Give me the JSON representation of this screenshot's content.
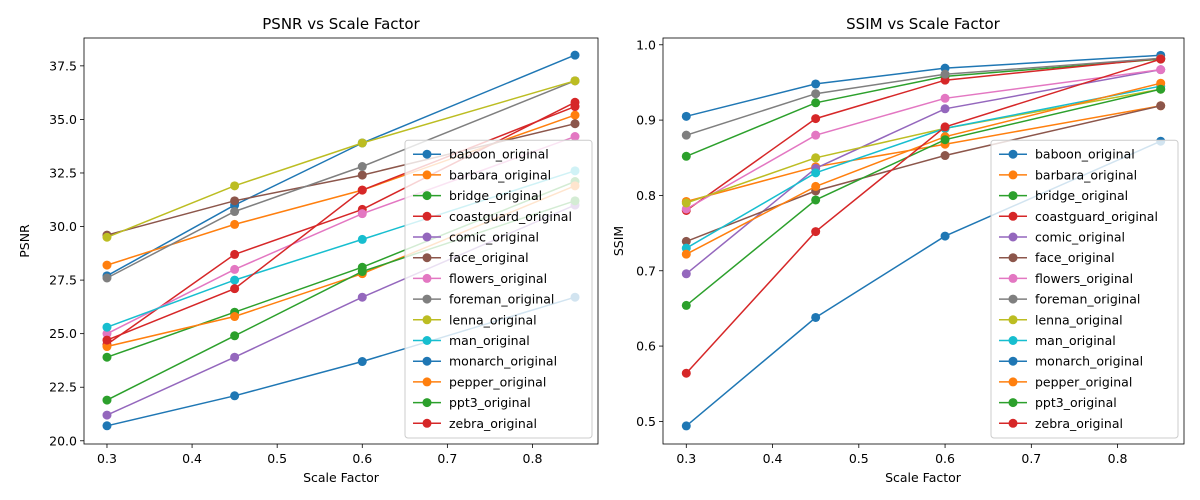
{
  "chart_data": [
    {
      "type": "line",
      "title": "PSNR vs Scale Factor",
      "xlabel": "Scale Factor",
      "ylabel": "PSNR",
      "xlim": [
        0.273,
        0.877
      ],
      "ylim": [
        19.85,
        38.8
      ],
      "xticks": [
        "0.3",
        "0.4",
        "0.5",
        "0.6",
        "0.7",
        "0.8"
      ],
      "yticks": [
        "20.0",
        "22.5",
        "25.0",
        "27.5",
        "30.0",
        "32.5",
        "35.0",
        "37.5"
      ],
      "x": [
        0.3,
        0.45,
        0.6,
        0.85
      ],
      "legend": "right",
      "series": [
        {
          "name": "baboon_original",
          "color": "#1f77b4",
          "values": [
            27.7,
            31.0,
            33.9,
            38.0
          ]
        },
        {
          "name": "barbara_original",
          "color": "#ff7f0e",
          "values": [
            28.2,
            30.1,
            31.7,
            35.2
          ]
        },
        {
          "name": "bridge_original",
          "color": "#2ca02c",
          "values": [
            23.9,
            26.0,
            28.1,
            32.1
          ]
        },
        {
          "name": "coastguard_original",
          "color": "#d62728",
          "values": [
            24.5,
            28.7,
            30.8,
            35.8
          ]
        },
        {
          "name": "comic_original",
          "color": "#9467bd",
          "values": [
            21.2,
            23.9,
            26.7,
            31.0
          ]
        },
        {
          "name": "face_original",
          "color": "#8c564b",
          "values": [
            29.6,
            31.2,
            32.4,
            34.8
          ]
        },
        {
          "name": "flowers_original",
          "color": "#e377c2",
          "values": [
            25.0,
            28.0,
            30.6,
            34.2
          ]
        },
        {
          "name": "foreman_original",
          "color": "#7f7f7f",
          "values": [
            27.6,
            30.7,
            32.8,
            36.8
          ]
        },
        {
          "name": "lenna_original",
          "color": "#bcbd22",
          "values": [
            29.5,
            31.9,
            33.9,
            36.8
          ]
        },
        {
          "name": "man_original",
          "color": "#17becf",
          "values": [
            25.3,
            27.5,
            29.4,
            32.6
          ]
        },
        {
          "name": "monarch_original",
          "color": "#1f77b4",
          "values": [
            20.7,
            22.1,
            23.7,
            26.7
          ]
        },
        {
          "name": "pepper_original",
          "color": "#ff7f0e",
          "values": [
            24.4,
            25.8,
            27.8,
            31.9
          ]
        },
        {
          "name": "ppt3_original",
          "color": "#2ca02c",
          "values": [
            21.9,
            24.9,
            27.9,
            31.2
          ]
        },
        {
          "name": "zebra_original",
          "color": "#d62728",
          "values": [
            24.7,
            27.1,
            31.7,
            35.6
          ]
        }
      ]
    },
    {
      "type": "line",
      "title": "SSIM vs Scale Factor",
      "xlabel": "Scale Factor",
      "ylabel": "SSIM",
      "xlim": [
        0.273,
        0.877
      ],
      "ylim": [
        0.47,
        1.009
      ],
      "xticks": [
        "0.3",
        "0.4",
        "0.5",
        "0.6",
        "0.7",
        "0.8"
      ],
      "yticks": [
        "0.5",
        "0.6",
        "0.7",
        "0.8",
        "0.9",
        "1.0"
      ],
      "x": [
        0.3,
        0.45,
        0.6,
        0.85
      ],
      "legend": "right",
      "series": [
        {
          "name": "baboon_original",
          "color": "#1f77b4",
          "values": [
            0.905,
            0.948,
            0.969,
            0.986
          ]
        },
        {
          "name": "barbara_original",
          "color": "#ff7f0e",
          "values": [
            0.792,
            0.838,
            0.868,
            0.919
          ]
        },
        {
          "name": "bridge_original",
          "color": "#2ca02c",
          "values": [
            0.852,
            0.923,
            0.958,
            0.981
          ]
        },
        {
          "name": "coastguard_original",
          "color": "#d62728",
          "values": [
            0.78,
            0.902,
            0.953,
            0.982
          ]
        },
        {
          "name": "comic_original",
          "color": "#9467bd",
          "values": [
            0.696,
            0.836,
            0.915,
            0.967
          ]
        },
        {
          "name": "face_original",
          "color": "#8c564b",
          "values": [
            0.739,
            0.806,
            0.853,
            0.919
          ]
        },
        {
          "name": "flowers_original",
          "color": "#e377c2",
          "values": [
            0.782,
            0.88,
            0.929,
            0.967
          ]
        },
        {
          "name": "foreman_original",
          "color": "#7f7f7f",
          "values": [
            0.88,
            0.935,
            0.961,
            0.982
          ]
        },
        {
          "name": "lenna_original",
          "color": "#bcbd22",
          "values": [
            0.79,
            0.85,
            0.889,
            0.941
          ]
        },
        {
          "name": "man_original",
          "color": "#17becf",
          "values": [
            0.73,
            0.83,
            0.889,
            0.945
          ]
        },
        {
          "name": "monarch_original",
          "color": "#1f77b4",
          "values": [
            0.494,
            0.638,
            0.746,
            0.872
          ]
        },
        {
          "name": "pepper_original",
          "color": "#ff7f0e",
          "values": [
            0.722,
            0.812,
            0.878,
            0.949
          ]
        },
        {
          "name": "ppt3_original",
          "color": "#2ca02c",
          "values": [
            0.654,
            0.794,
            0.874,
            0.941
          ]
        },
        {
          "name": "zebra_original",
          "color": "#d62728",
          "values": [
            0.564,
            0.752,
            0.891,
            0.981
          ]
        }
      ]
    }
  ]
}
